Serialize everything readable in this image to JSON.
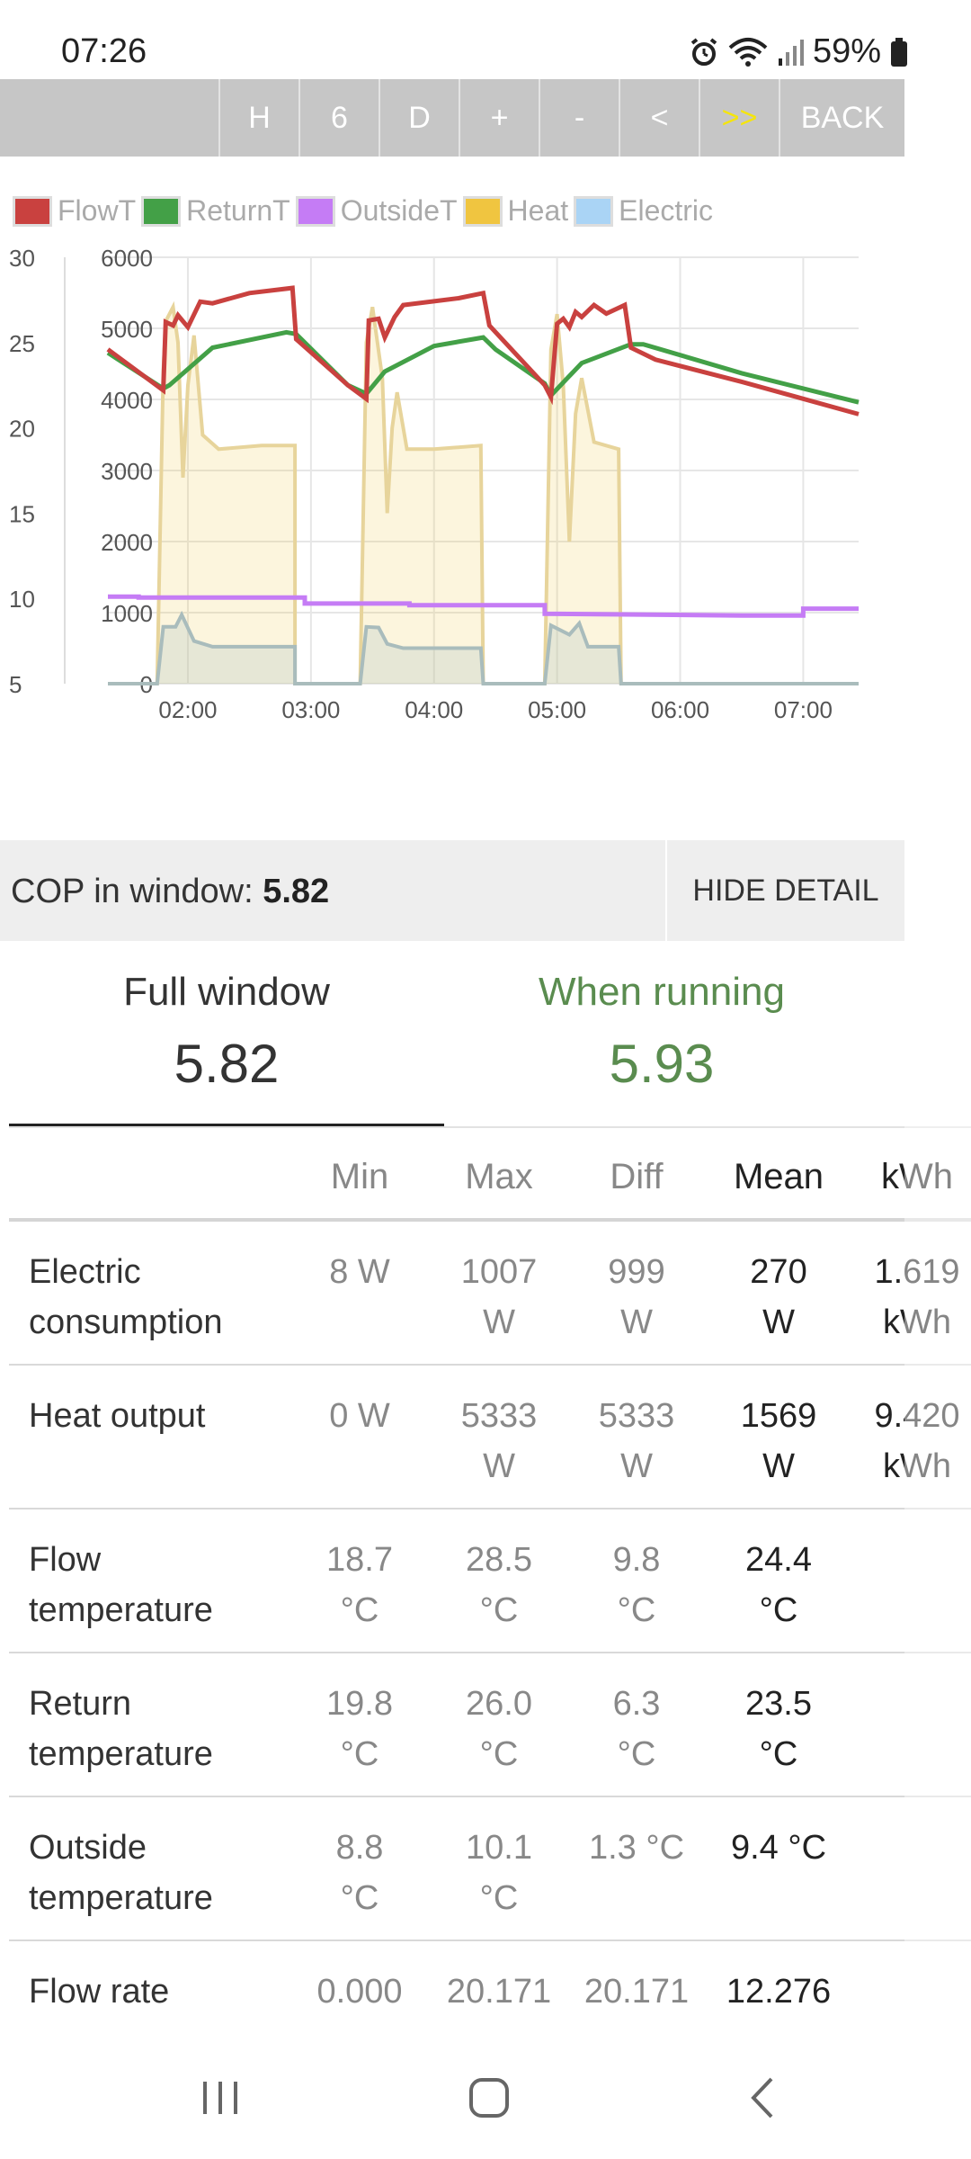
{
  "status": {
    "time": "07:26",
    "battery": "59%"
  },
  "toolbar": {
    "buttons": [
      "H",
      "6",
      "D",
      "+",
      "-",
      "<",
      ">>",
      "BACK"
    ]
  },
  "chart_data": {
    "type": "line",
    "legend": [
      {
        "name": "FlowT",
        "color": "#c9413f"
      },
      {
        "name": "ReturnT",
        "color": "#43a047"
      },
      {
        "name": "OutsideT",
        "color": "#c57cf5"
      },
      {
        "name": "Heat",
        "color": "#f0c540"
      },
      {
        "name": "Electric",
        "color": "#aad4f5"
      }
    ],
    "y_left_ticks": [
      "30",
      "25",
      "20",
      "15",
      "10",
      "5"
    ],
    "y_right_ticks": [
      "6000",
      "5000",
      "4000",
      "3000",
      "2000",
      "1000",
      "0"
    ],
    "x_ticks": [
      "02:00",
      "03:00",
      "04:00",
      "05:00",
      "06:00",
      "07:00"
    ],
    "temp_range": [
      5,
      30
    ],
    "power_range": [
      0,
      6000
    ],
    "x_range": [
      1.35,
      7.45
    ],
    "series": [
      {
        "name": "FlowT",
        "points": [
          [
            1.35,
            24.6
          ],
          [
            1.8,
            22.2
          ],
          [
            1.82,
            26.2
          ],
          [
            1.88,
            26.0
          ],
          [
            1.92,
            26.6
          ],
          [
            2.0,
            25.9
          ],
          [
            2.1,
            27.4
          ],
          [
            2.2,
            27.3
          ],
          [
            2.5,
            27.9
          ],
          [
            2.85,
            28.2
          ],
          [
            2.88,
            25.2
          ],
          [
            3.3,
            22.5
          ],
          [
            3.45,
            21.7
          ],
          [
            3.47,
            26.3
          ],
          [
            3.55,
            26.4
          ],
          [
            3.6,
            25.3
          ],
          [
            3.68,
            26.5
          ],
          [
            3.75,
            27.2
          ],
          [
            4.2,
            27.6
          ],
          [
            4.4,
            27.9
          ],
          [
            4.45,
            26.0
          ],
          [
            4.9,
            22.5
          ],
          [
            4.95,
            21.8
          ],
          [
            5.0,
            26.1
          ],
          [
            5.05,
            26.4
          ],
          [
            5.1,
            25.9
          ],
          [
            5.15,
            26.8
          ],
          [
            5.2,
            26.5
          ],
          [
            5.3,
            27.2
          ],
          [
            5.4,
            26.7
          ],
          [
            5.55,
            27.2
          ],
          [
            5.6,
            24.7
          ],
          [
            5.8,
            24.0
          ],
          [
            6.5,
            22.7
          ],
          [
            7.45,
            20.8
          ]
        ]
      },
      {
        "name": "ReturnT",
        "points": [
          [
            1.35,
            24.4
          ],
          [
            1.8,
            22.3
          ],
          [
            1.85,
            22.5
          ],
          [
            2.2,
            24.7
          ],
          [
            2.8,
            25.6
          ],
          [
            2.88,
            25.5
          ],
          [
            3.3,
            22.5
          ],
          [
            3.45,
            22.0
          ],
          [
            3.6,
            23.3
          ],
          [
            4.0,
            24.8
          ],
          [
            4.4,
            25.3
          ],
          [
            4.5,
            24.6
          ],
          [
            4.9,
            22.6
          ],
          [
            4.95,
            21.9
          ],
          [
            5.2,
            23.8
          ],
          [
            5.6,
            24.9
          ],
          [
            5.7,
            24.9
          ],
          [
            6.5,
            23.2
          ],
          [
            7.45,
            21.5
          ]
        ]
      },
      {
        "name": "OutsideT",
        "points": [
          [
            1.35,
            10.1
          ],
          [
            1.6,
            10.1
          ],
          [
            1.6,
            10.05
          ],
          [
            2.95,
            10.05
          ],
          [
            2.95,
            9.7
          ],
          [
            3.8,
            9.7
          ],
          [
            3.8,
            9.6
          ],
          [
            4.9,
            9.6
          ],
          [
            4.9,
            9.1
          ],
          [
            6.5,
            9.0
          ],
          [
            7.0,
            9.0
          ],
          [
            7.0,
            9.4
          ],
          [
            7.45,
            9.4
          ]
        ]
      },
      {
        "name": "Heat",
        "points": [
          [
            1.35,
            0
          ],
          [
            1.75,
            0
          ],
          [
            1.8,
            4400
          ],
          [
            1.82,
            5100
          ],
          [
            1.88,
            5300
          ],
          [
            1.92,
            4800
          ],
          [
            1.96,
            2900
          ],
          [
            2.0,
            4200
          ],
          [
            2.05,
            4900
          ],
          [
            2.12,
            3500
          ],
          [
            2.25,
            3300
          ],
          [
            2.6,
            3350
          ],
          [
            2.87,
            3350
          ],
          [
            2.87,
            0
          ],
          [
            3.4,
            0
          ],
          [
            3.45,
            4800
          ],
          [
            3.5,
            5300
          ],
          [
            3.58,
            4300
          ],
          [
            3.62,
            2400
          ],
          [
            3.66,
            3600
          ],
          [
            3.7,
            4100
          ],
          [
            3.78,
            3300
          ],
          [
            4.0,
            3300
          ],
          [
            4.38,
            3350
          ],
          [
            4.4,
            0
          ],
          [
            4.9,
            0
          ],
          [
            4.95,
            4700
          ],
          [
            5.0,
            5200
          ],
          [
            5.05,
            4200
          ],
          [
            5.1,
            2000
          ],
          [
            5.15,
            3800
          ],
          [
            5.2,
            4300
          ],
          [
            5.3,
            3400
          ],
          [
            5.5,
            3300
          ],
          [
            5.52,
            0
          ],
          [
            7.45,
            0
          ]
        ]
      },
      {
        "name": "Electric",
        "points": [
          [
            1.35,
            0
          ],
          [
            1.75,
            0
          ],
          [
            1.8,
            800
          ],
          [
            1.9,
            800
          ],
          [
            1.95,
            970
          ],
          [
            2.05,
            600
          ],
          [
            2.2,
            520
          ],
          [
            2.87,
            520
          ],
          [
            2.87,
            0
          ],
          [
            3.4,
            0
          ],
          [
            3.45,
            800
          ],
          [
            3.55,
            790
          ],
          [
            3.62,
            560
          ],
          [
            3.75,
            500
          ],
          [
            4.38,
            500
          ],
          [
            4.4,
            0
          ],
          [
            4.9,
            0
          ],
          [
            4.95,
            820
          ],
          [
            5.1,
            690
          ],
          [
            5.18,
            850
          ],
          [
            5.25,
            520
          ],
          [
            5.5,
            520
          ],
          [
            5.52,
            0
          ],
          [
            7.45,
            0
          ]
        ]
      }
    ]
  },
  "cop": {
    "label": "COP in window:",
    "value": "5.82",
    "hide_button": "HIDE DETAIL"
  },
  "summary": {
    "full": {
      "title": "Full window",
      "value": "5.82"
    },
    "running": {
      "title": "When running",
      "value": "5.93"
    }
  },
  "table": {
    "headers": [
      "Min",
      "Max",
      "Diff",
      "Mean",
      "kWh"
    ],
    "rows": [
      {
        "name": [
          "Electric",
          "consumption"
        ],
        "min": [
          "8 W",
          ""
        ],
        "max": [
          "1007",
          "W"
        ],
        "diff": [
          "999",
          "W"
        ],
        "mean": [
          "270",
          "W"
        ],
        "kwh": [
          "1.619",
          "kWh"
        ]
      },
      {
        "name": [
          "Heat output",
          ""
        ],
        "min": [
          "0 W",
          ""
        ],
        "max": [
          "5333",
          "W"
        ],
        "diff": [
          "5333",
          "W"
        ],
        "mean": [
          "1569",
          "W"
        ],
        "kwh": [
          "9.420",
          "kWh"
        ]
      },
      {
        "name": [
          "Flow",
          "temperature"
        ],
        "min": [
          "18.7",
          "°C"
        ],
        "max": [
          "28.5",
          "°C"
        ],
        "diff": [
          "9.8",
          "°C"
        ],
        "mean": [
          "24.4",
          "°C"
        ],
        "kwh": [
          "",
          ""
        ]
      },
      {
        "name": [
          "Return",
          "temperature"
        ],
        "min": [
          "19.8",
          "°C"
        ],
        "max": [
          "26.0",
          "°C"
        ],
        "diff": [
          "6.3",
          "°C"
        ],
        "mean": [
          "23.5",
          "°C"
        ],
        "kwh": [
          "",
          ""
        ]
      },
      {
        "name": [
          "Outside",
          "temperature"
        ],
        "min": [
          "8.8",
          "°C"
        ],
        "max": [
          "10.1",
          "°C"
        ],
        "diff": [
          "1.3 °C",
          ""
        ],
        "mean": [
          "9.4 °C",
          ""
        ],
        "kwh": [
          "",
          ""
        ]
      }
    ],
    "last_row": {
      "name": "Flow rate",
      "min": "0.000",
      "max": "20.171",
      "diff": "20.171",
      "mean": "12.276"
    }
  }
}
